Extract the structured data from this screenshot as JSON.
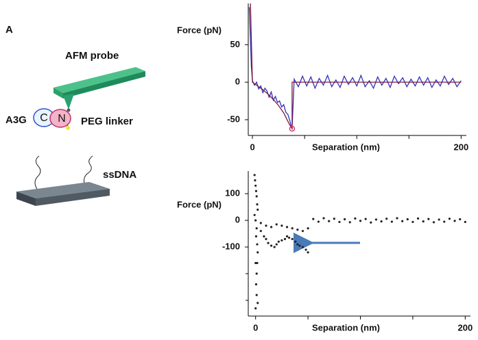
{
  "figure": {
    "panel_label": "A",
    "diagram": {
      "probe_label": "AFM probe",
      "linker_label": "PEG linker",
      "protein_label": "A3G",
      "domain_c": "C",
      "domain_n": "N",
      "dna_label": "ssDNA"
    }
  },
  "chart_data": [
    {
      "type": "line",
      "x_label": "Separation (nm)",
      "y_label": "Force (pN)",
      "xlim": [
        -4,
        205
      ],
      "ylim": [
        -71,
        105
      ],
      "xticks": [
        0,
        200
      ],
      "x_minor_ticks": [
        50,
        100,
        150
      ],
      "yticks": [
        -50,
        0,
        50
      ],
      "series": [
        {
          "color": "#3030b8",
          "x": [
            -3,
            -2,
            -1,
            0,
            2,
            4,
            6,
            8,
            10,
            12,
            14,
            16,
            18,
            20,
            22,
            24,
            26,
            28,
            30,
            32,
            34,
            36,
            37,
            38,
            40,
            44,
            48,
            52,
            56,
            60,
            64,
            68,
            72,
            76,
            80,
            84,
            88,
            92,
            96,
            100,
            104,
            108,
            112,
            116,
            120,
            124,
            128,
            132,
            136,
            140,
            144,
            148,
            152,
            156,
            160,
            164,
            168,
            172,
            176,
            180,
            184,
            188,
            192,
            196,
            200
          ],
          "values": [
            100,
            60,
            20,
            2,
            -4,
            0,
            -9,
            -5,
            -14,
            -8,
            -12,
            -20,
            -13,
            -24,
            -19,
            -27,
            -25,
            -33,
            -30,
            -40,
            -43,
            -52,
            -58,
            -62,
            4,
            -6,
            8,
            -5,
            7,
            -8,
            5,
            -4,
            9,
            -6,
            3,
            -7,
            8,
            -3,
            6,
            -5,
            9,
            -6,
            2,
            -8,
            7,
            -4,
            5,
            -7,
            8,
            -2,
            6,
            -6,
            4,
            -5,
            7,
            -4,
            6,
            -7,
            3,
            -5,
            8,
            -3,
            5,
            -6,
            2
          ]
        },
        {
          "color": "#7a1a3a",
          "x": [
            -2,
            0,
            5,
            10,
            15,
            20,
            25,
            30,
            35,
            38,
            38,
            200
          ],
          "values": [
            110,
            0,
            -5,
            -10,
            -16,
            -23,
            -31,
            -41,
            -55,
            -62,
            0,
            0
          ]
        }
      ],
      "highlight_point": {
        "x": 38,
        "y": -62,
        "color": "#e0306a"
      }
    },
    {
      "type": "scatter",
      "x_label": "Separation (nm)",
      "y_label": "Force (pN)",
      "xlim": [
        -7,
        205
      ],
      "ylim": [
        -359,
        185
      ],
      "xticks": [
        0,
        200
      ],
      "x_minor_ticks": [
        50,
        100,
        150
      ],
      "yticks": [
        -100,
        0,
        100
      ],
      "y_minor_ticks": [
        -300,
        -200
      ],
      "series": [
        {
          "color": "#222222",
          "x": [
            -1,
            -0.5,
            0,
            0.5,
            1,
            1.5,
            2,
            -1,
            0,
            1,
            0.5,
            1.5,
            2,
            0,
            1,
            0.5,
            1,
            2,
            0,
            1.5,
            5,
            8,
            10,
            12,
            15,
            18,
            20,
            22,
            25,
            28,
            30,
            32,
            35,
            38,
            40,
            42,
            45,
            48,
            50,
            5,
            10,
            15,
            20,
            25,
            30,
            35,
            40,
            45,
            50,
            55,
            60,
            65,
            70,
            75,
            80,
            85,
            90,
            95,
            100,
            105,
            110,
            115,
            120,
            125,
            130,
            135,
            140,
            145,
            150,
            155,
            160,
            165,
            170,
            175,
            180,
            185,
            190,
            195,
            200
          ],
          "values": [
            170,
            150,
            130,
            110,
            90,
            60,
            40,
            20,
            0,
            -30,
            -60,
            -90,
            -120,
            -160,
            -200,
            -240,
            -280,
            -310,
            -330,
            -160,
            -40,
            -60,
            -70,
            -85,
            -95,
            -100,
            -90,
            -80,
            -75,
            -70,
            -60,
            -65,
            -70,
            -80,
            -90,
            -95,
            -100,
            -110,
            -120,
            -10,
            -20,
            -25,
            -15,
            -20,
            -25,
            -30,
            -35,
            -40,
            -30,
            5,
            -5,
            8,
            -3,
            6,
            -6,
            4,
            -7,
            7,
            -2,
            5,
            -8,
            3,
            -4,
            6,
            -5,
            8,
            -3,
            4,
            -6,
            7,
            -4,
            5,
            -7,
            3,
            -5,
            6,
            -2,
            4,
            -6
          ]
        }
      ]
    }
  ]
}
